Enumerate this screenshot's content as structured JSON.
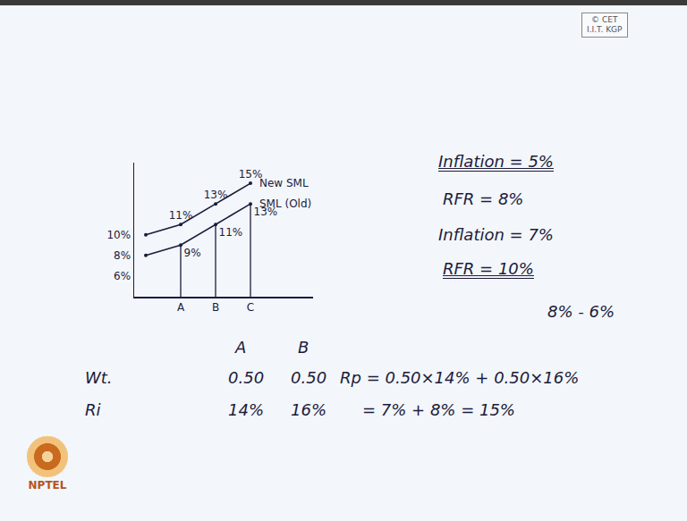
{
  "watermark": [
    "© CET",
    "I.I.T. KGP"
  ],
  "chart_data": {
    "type": "line",
    "categories": [
      null,
      "A",
      "B",
      "C"
    ],
    "series": [
      {
        "name": "SML (Old)",
        "color": "#1c1c3c",
        "values": [
          8,
          9,
          11,
          13
        ],
        "value_labels": [
          null,
          "9%",
          "11%",
          "13%"
        ]
      },
      {
        "name": "New SML",
        "color": "#1c1c3c",
        "values": [
          10,
          11,
          13,
          15
        ],
        "value_labels": [
          null,
          "11%",
          "13%",
          "15%"
        ]
      }
    ],
    "ylim": [
      4,
      17
    ],
    "yticks": [
      {
        "value": 6,
        "label": "6%"
      },
      {
        "value": 8,
        "label": "8%"
      },
      {
        "value": 10,
        "label": "10%"
      }
    ],
    "data_labels": true
  },
  "notes": [
    "Inflation = 5%",
    "RFR = 8%",
    "Inflation = 7%",
    "RFR = 10%",
    "8% - 6%"
  ],
  "table": {
    "header": [
      "A",
      "B"
    ],
    "rows": [
      [
        "Wt.",
        "0.50",
        "0.50"
      ],
      [
        "Ri",
        "14%",
        "16%"
      ]
    ]
  },
  "formula": [
    "Rp = 0.50×14% + 0.50×16%",
    "= 7% + 8% = 15%"
  ],
  "logo": "NPTEL"
}
